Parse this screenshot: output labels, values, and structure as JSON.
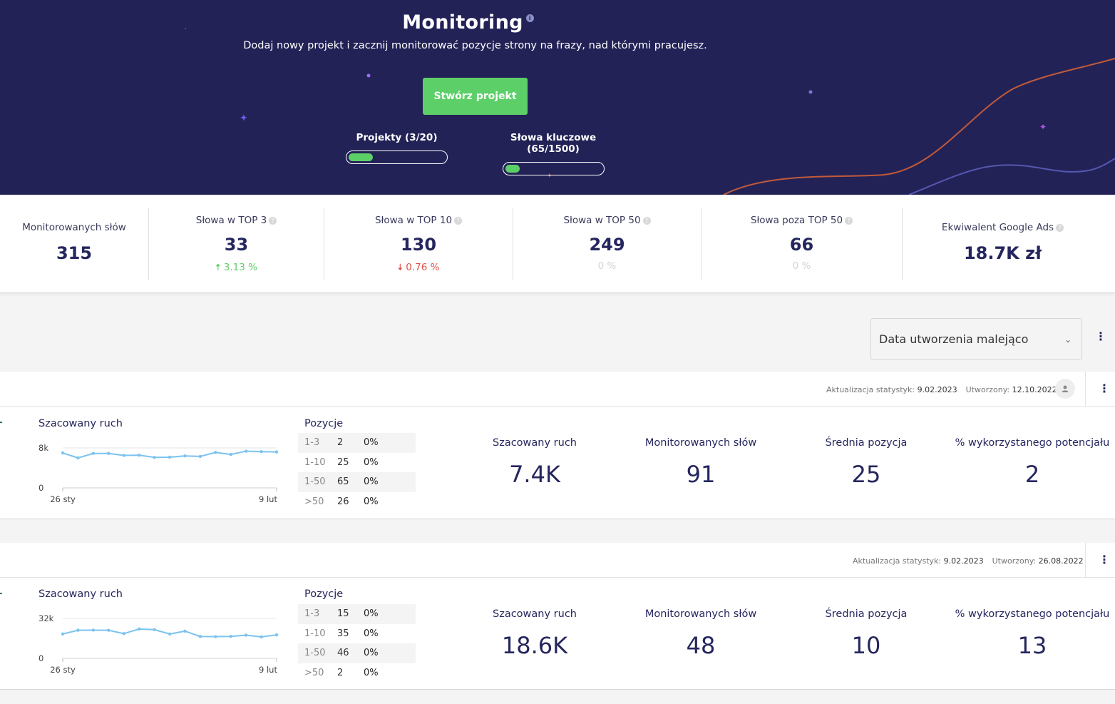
{
  "hero": {
    "title": "Monitoring",
    "info_icon": "info-icon",
    "subtitle": "Dodaj nowy projekt i zacznij monitorować pozycje strony na frazy, nad którymi pracujesz.",
    "cta_label": "Stwórz projekt",
    "quota_projects": {
      "label": "Projekty (3/20)",
      "used": 3,
      "total": 20
    },
    "quota_keywords": {
      "label": "Słowa kluczowe (65/1500)",
      "used": 65,
      "total": 1500
    },
    "colors": {
      "background": "#232257",
      "accent": "#5ccf68"
    }
  },
  "stats": [
    {
      "label": "Monitorowanych słów",
      "value": "315",
      "help": false
    },
    {
      "label": "Słowa w TOP 3",
      "value": "33",
      "change": "3.13 %",
      "trend": "up",
      "help": true
    },
    {
      "label": "Słowa w TOP 10",
      "value": "130",
      "change": "0.76 %",
      "trend": "down",
      "help": true
    },
    {
      "label": "Słowa w TOP 50",
      "value": "249",
      "change": "0 %",
      "trend": "neutral",
      "help": true
    },
    {
      "label": "Słowa poza TOP 50",
      "value": "66",
      "change": "0 %",
      "trend": "neutral",
      "help": true
    },
    {
      "label": "Ekwiwalent Google Ads",
      "value": "18.7K zł",
      "help": true
    }
  ],
  "sort": {
    "selected": "Data utworzenia malejąco"
  },
  "projects": [
    {
      "meta": {
        "updated_label": "Aktualizacja statystyk:",
        "updated": "9.02.2023",
        "created_label": "Utworzony:",
        "created": "12.10.2022"
      },
      "chart_title": "Szacowany ruch",
      "chart_data": {
        "type": "line",
        "y_ticks": [
          "8k",
          "0"
        ],
        "x_ticks": [
          "26 sty",
          "9 lut"
        ],
        "ylim": [
          0,
          8000
        ],
        "values": [
          7000,
          6000,
          6900,
          6900,
          6500,
          6550,
          6100,
          6150,
          6400,
          6300,
          7100,
          6700,
          7350,
          7250,
          7200
        ]
      },
      "positions_title": "Pozycje",
      "positions": [
        {
          "range": "1-3",
          "count": "2",
          "pct": "0%"
        },
        {
          "range": "1-10",
          "count": "25",
          "pct": "0%"
        },
        {
          "range": "1-50",
          "count": "65",
          "pct": "0%"
        },
        {
          "range": ">50",
          "count": "26",
          "pct": "0%"
        }
      ],
      "metrics": [
        {
          "label": "Szacowany ruch",
          "value": "7.4K"
        },
        {
          "label": "Monitorowanych słów",
          "value": "91"
        },
        {
          "label": "Średnia pozycja",
          "value": "25"
        },
        {
          "label": "% wykorzystanego potencjału",
          "value": "2"
        }
      ]
    },
    {
      "meta": {
        "updated_label": "Aktualizacja statystyk:",
        "updated": "9.02.2023",
        "created_label": "Utworzony:",
        "created": "26.08.2022"
      },
      "chart_title": "Szacowany ruch",
      "chart_data": {
        "type": "line",
        "y_ticks": [
          "32k",
          "0"
        ],
        "x_ticks": [
          "26 sty",
          "9 lut"
        ],
        "ylim": [
          0,
          32000
        ],
        "values": [
          19500,
          22500,
          22600,
          22500,
          19800,
          23500,
          23000,
          19500,
          21800,
          17500,
          17400,
          17600,
          18600,
          17200,
          18800
        ]
      },
      "positions_title": "Pozycje",
      "positions": [
        {
          "range": "1-3",
          "count": "15",
          "pct": "0%"
        },
        {
          "range": "1-10",
          "count": "35",
          "pct": "0%"
        },
        {
          "range": "1-50",
          "count": "46",
          "pct": "0%"
        },
        {
          "range": ">50",
          "count": "2",
          "pct": "0%"
        }
      ],
      "metrics": [
        {
          "label": "Szacowany ruch",
          "value": "18.6K"
        },
        {
          "label": "Monitorowanych słów",
          "value": "48"
        },
        {
          "label": "Średnia pozycja",
          "value": "10"
        },
        {
          "label": "% wykorzystanego potencjału",
          "value": "13"
        }
      ]
    }
  ]
}
